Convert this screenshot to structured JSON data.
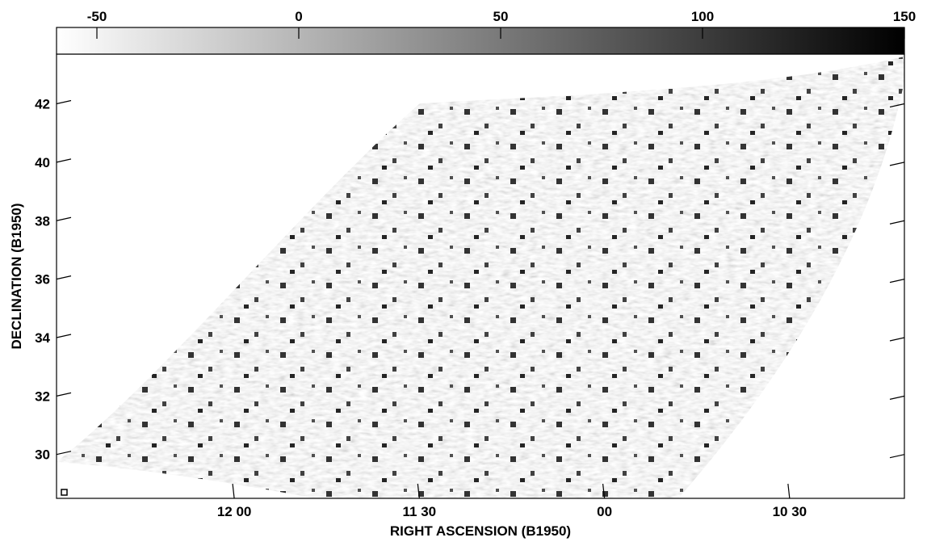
{
  "chart_data": {
    "type": "image",
    "x_label": "RIGHT ASCENSION (B1950)",
    "y_label": "DECLINATION (B1950)",
    "xlim": [
      12.48,
      10.19
    ],
    "xticks": [
      {
        "value": 12.0,
        "label": "12 00"
      },
      {
        "value": 11.5,
        "label": "11 30"
      },
      {
        "value": 11.0,
        "label": "00"
      },
      {
        "value": 10.5,
        "label": "10 30"
      }
    ],
    "ylim": [
      28.5,
      43.7
    ],
    "yticks": [
      30,
      32,
      34,
      36,
      38,
      40,
      42
    ],
    "clim": [
      -60,
      150
    ],
    "cticks": [
      -50,
      0,
      50,
      100,
      150
    ],
    "colormap": [
      "#ffffff",
      "#000000"
    ]
  }
}
